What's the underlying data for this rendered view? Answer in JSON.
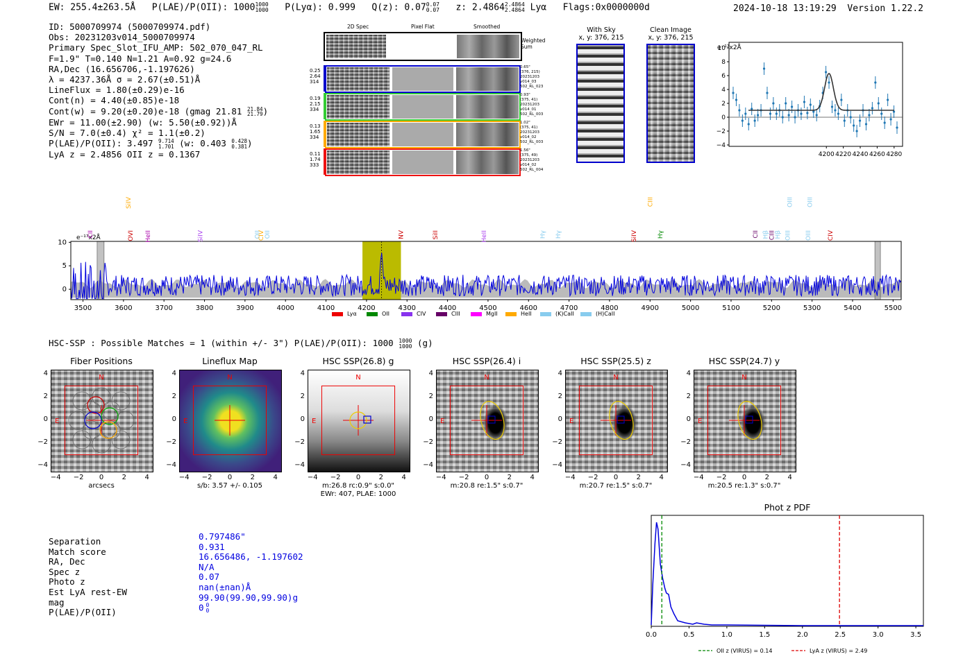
{
  "header": {
    "ew": "EW: 255.4±263.5Å",
    "plae_prefix": "P(LAE)/P(OII): 1000",
    "plae_sup": "1000",
    "plae_sub": "1000",
    "plya": "P(Lyα): 0.999",
    "qz_prefix": "Q(z): 0.07",
    "qz_sup": "0.07",
    "qz_sub": "0.07",
    "z_prefix": "z: 2.4864",
    "z_sup": "2.4864",
    "z_sub": "2.4864",
    "z_line": "Lyα",
    "flags": "Flags:0x0000000d",
    "timestamp": "2024-10-18 13:19:29",
    "version": "Version 1.22.2"
  },
  "info": {
    "id": "ID: 5000709974 (5000709974.pdf)",
    "obs": "Obs: 20231203v014_5000709974",
    "primary": "Primary Spec_Slot_IFU_AMP: 502_070_047_RL",
    "params": "F=1.9\"  T=0.140  N=1.21  A=0.92  g=24.6",
    "radec": "RA,Dec (16.656706,-1.197626)",
    "lambda": "λ = 4237.36Å  σ = 2.67(±0.51)Å",
    "lineflux": "LineFlux = 1.80(±0.29)e-16",
    "contn": "Cont(n) = 4.40(±0.85)e-18",
    "contw_prefix": "Cont(w) = 9.20(±0.20)e-18 (gmag 21.81",
    "contw_sup": "21.84",
    "contw_sub": "21.79",
    "ewr": "EWr = 11.00(±2.90) (w: 5.50(±0.92))Å",
    "sn": "S/N = 7.0(±0.4)  χ² = 1.1(±0.2)",
    "plae2_prefix": "P(LAE)/P(OII): 3.497",
    "plae2_sup": "9.714",
    "plae2_sub": "1.701",
    "plae2_mid": "(w: 0.403",
    "plae2_sup2": "0.428",
    "plae2_sub2": "0.381",
    "lyaz": "LyA z = 2.4856   OII z = 0.1367"
  },
  "cutouts": {
    "col_2d": "2D Spec",
    "col_flat": "Pixel Flat",
    "col_smooth": "Smoothed",
    "weighted": "Weighted Sum",
    "rows": [
      {
        "vals": [
          "0.25",
          "2.64",
          "314"
        ],
        "meta": [
          "0.65\"",
          "(376, 215)",
          "20231203",
          "v014_03",
          "502_RL_023"
        ],
        "color": "#0000cc"
      },
      {
        "vals": [
          "0.19",
          "2.15",
          "334"
        ],
        "meta": [
          "0.93\"",
          "(375, 41)",
          "20231203",
          "v014_01",
          "502_RL_003"
        ],
        "color": "#33cc33"
      },
      {
        "vals": [
          "0.13",
          "1.65",
          "334"
        ],
        "meta": [
          "1.02\"",
          "(375, 41)",
          "20231203",
          "v014_02",
          "502_RL_003"
        ],
        "color": "#ffaa00"
      },
      {
        "vals": [
          "0.11",
          "1.74",
          "333"
        ],
        "meta": [
          "1.56\"",
          "(375, 49)",
          "20231203",
          "v014_02",
          "502_RL_004"
        ],
        "color": "#ee1111"
      }
    ]
  },
  "sky": {
    "with_sky": "With Sky",
    "with_sky_xy": "x, y: 376, 215",
    "clean": "Clean Image",
    "clean_xy": "x, y: 376, 215"
  },
  "zoom_plot": {
    "ylabel": "e⁻¹⁷x2Å",
    "yticks": [
      "10",
      "8",
      "6",
      "4",
      "2",
      "0",
      "−2",
      "−4"
    ],
    "xticks": [
      "4200",
      "4220",
      "4240",
      "4260",
      "4280"
    ]
  },
  "spectrum": {
    "ylabel": "e⁻¹⁷x2Å",
    "yticks": [
      "10",
      "5",
      "0"
    ],
    "xticks": [
      "3500",
      "3600",
      "3700",
      "3800",
      "3900",
      "4000",
      "4100",
      "4200",
      "4300",
      "4400",
      "4500",
      "4600",
      "4700",
      "4800",
      "4900",
      "5000",
      "5100",
      "5200",
      "5300",
      "5400",
      "5500"
    ],
    "lines": [
      {
        "label": "CII",
        "color": "#aa00aa",
        "row": 2
      },
      {
        "label": "SiIV",
        "color": "#ffaa00",
        "row": 0
      },
      {
        "label": "OVI",
        "color": "#cc0000",
        "row": 2
      },
      {
        "label": "HeII",
        "color": "#aa00aa",
        "row": 2
      },
      {
        "label": "SiIV",
        "color": "#aa44ee",
        "row": 2
      },
      {
        "label": "OII",
        "color": "#88ccee",
        "row": 2
      },
      {
        "label": "CIV",
        "color": "#ffaa00",
        "row": 2
      },
      {
        "label": "OII",
        "color": "#88ccee",
        "row": 2
      },
      {
        "label": "NV",
        "color": "#cc0000",
        "row": 2
      },
      {
        "label": "SiII",
        "color": "#cc0000",
        "row": 2
      },
      {
        "label": "HeII",
        "color": "#aa44ee",
        "row": 2
      },
      {
        "label": "Hγ",
        "color": "#88ccee",
        "row": 2
      },
      {
        "label": "Hγ",
        "color": "#88ccee",
        "row": 2
      },
      {
        "label": "SiIV",
        "color": "#cc0000",
        "row": 2
      },
      {
        "label": "CIII",
        "color": "#ffaa00",
        "row": 0
      },
      {
        "label": "Hγ",
        "color": "#008800",
        "row": 2
      },
      {
        "label": "CII",
        "color": "#660066",
        "row": 2
      },
      {
        "label": "Hβ",
        "color": "#88ccee",
        "row": 2
      },
      {
        "label": "CIII",
        "color": "#660066",
        "row": 2
      },
      {
        "label": "Hβ",
        "color": "#88ccee",
        "row": 2
      },
      {
        "label": "OIII",
        "color": "#88ccee",
        "row": 2
      },
      {
        "label": "OIII",
        "color": "#88ccee",
        "row": 0
      },
      {
        "label": "OIII",
        "color": "#88ccee",
        "row": 2
      },
      {
        "label": "OIII",
        "color": "#88ccee",
        "row": 0
      },
      {
        "label": "CIV",
        "color": "#cc0000",
        "row": 2
      }
    ],
    "legend": [
      {
        "label": "Lyα",
        "color": "#ee0000"
      },
      {
        "label": "OII",
        "color": "#008800"
      },
      {
        "label": "CIV",
        "color": "#8833ee"
      },
      {
        "label": "CIII",
        "color": "#660066"
      },
      {
        "label": "MgII",
        "color": "#ff00ff"
      },
      {
        "label": "HeII",
        "color": "#ffaa00"
      },
      {
        "label": "(K)CaII",
        "color": "#88ccee"
      },
      {
        "label": "(H)CaII",
        "color": "#88ccee"
      }
    ]
  },
  "hsc": {
    "summary_prefix": "HSC-SSP : Possible Matches = 1 (within +/- 3\")  P(LAE)/P(OII): 1000",
    "summary_sup": "1000",
    "summary_sub": "1000",
    "summary_band": "(g)",
    "axis_ticks": [
      "4",
      "2",
      "0",
      "−2",
      "−4"
    ],
    "xaxis_ticks": [
      "−4",
      "−2",
      "0",
      "2",
      "4"
    ],
    "n_label": "N",
    "e_label": "E",
    "panels": [
      {
        "title": "Fiber Positions",
        "sub": "arcsecs",
        "sub2": ""
      },
      {
        "title": "Lineflux Map",
        "sub": "s/b: 3.57 +/- 0.105",
        "sub2": ""
      },
      {
        "title": "HSC SSP(26.8) g",
        "sub": "m:26.8 rc:0.9\"  s:0.0\"",
        "sub2": "EWr: 407, PLAE: 1000"
      },
      {
        "title": "HSC SSP(26.4) i",
        "sub": "m:20.8  re:1.5\"  s:0.7\"",
        "sub2": ""
      },
      {
        "title": "HSC SSP(25.5) z",
        "sub": "m:20.7  re:1.5\"  s:0.7\"",
        "sub2": ""
      },
      {
        "title": "HSC SSP(24.7) y",
        "sub": "m:20.5  re:1.3\"  s:0.7\"",
        "sub2": ""
      }
    ]
  },
  "match": {
    "labels": [
      "Separation",
      "Match score",
      "RA, Dec",
      "Spec z",
      "Photo z",
      "Est LyA rest-EW",
      "mag",
      "P(LAE)/P(OII)"
    ],
    "values": [
      "0.797486\"",
      "0.931",
      "16.656486, -1.197602",
      "N/A",
      "0.07",
      "nan(±nan)Å",
      "99.90(99.90,99.90)g",
      "0"
    ],
    "plae_sup": "0",
    "plae_sub": "0"
  },
  "photz": {
    "title": "Phot z PDF",
    "xticks": [
      "0.0",
      "0.5",
      "1.0",
      "1.5",
      "2.0",
      "2.5",
      "3.0",
      "3.5"
    ],
    "legend_oii": "OII z (VIRUS) = 0.14",
    "legend_lya": "LyA z (VIRUS) = 2.49"
  },
  "colors": {
    "blue": "#0000dd",
    "accent_box": "#bbbb00",
    "gray_fill": "#bbbbbb"
  }
}
